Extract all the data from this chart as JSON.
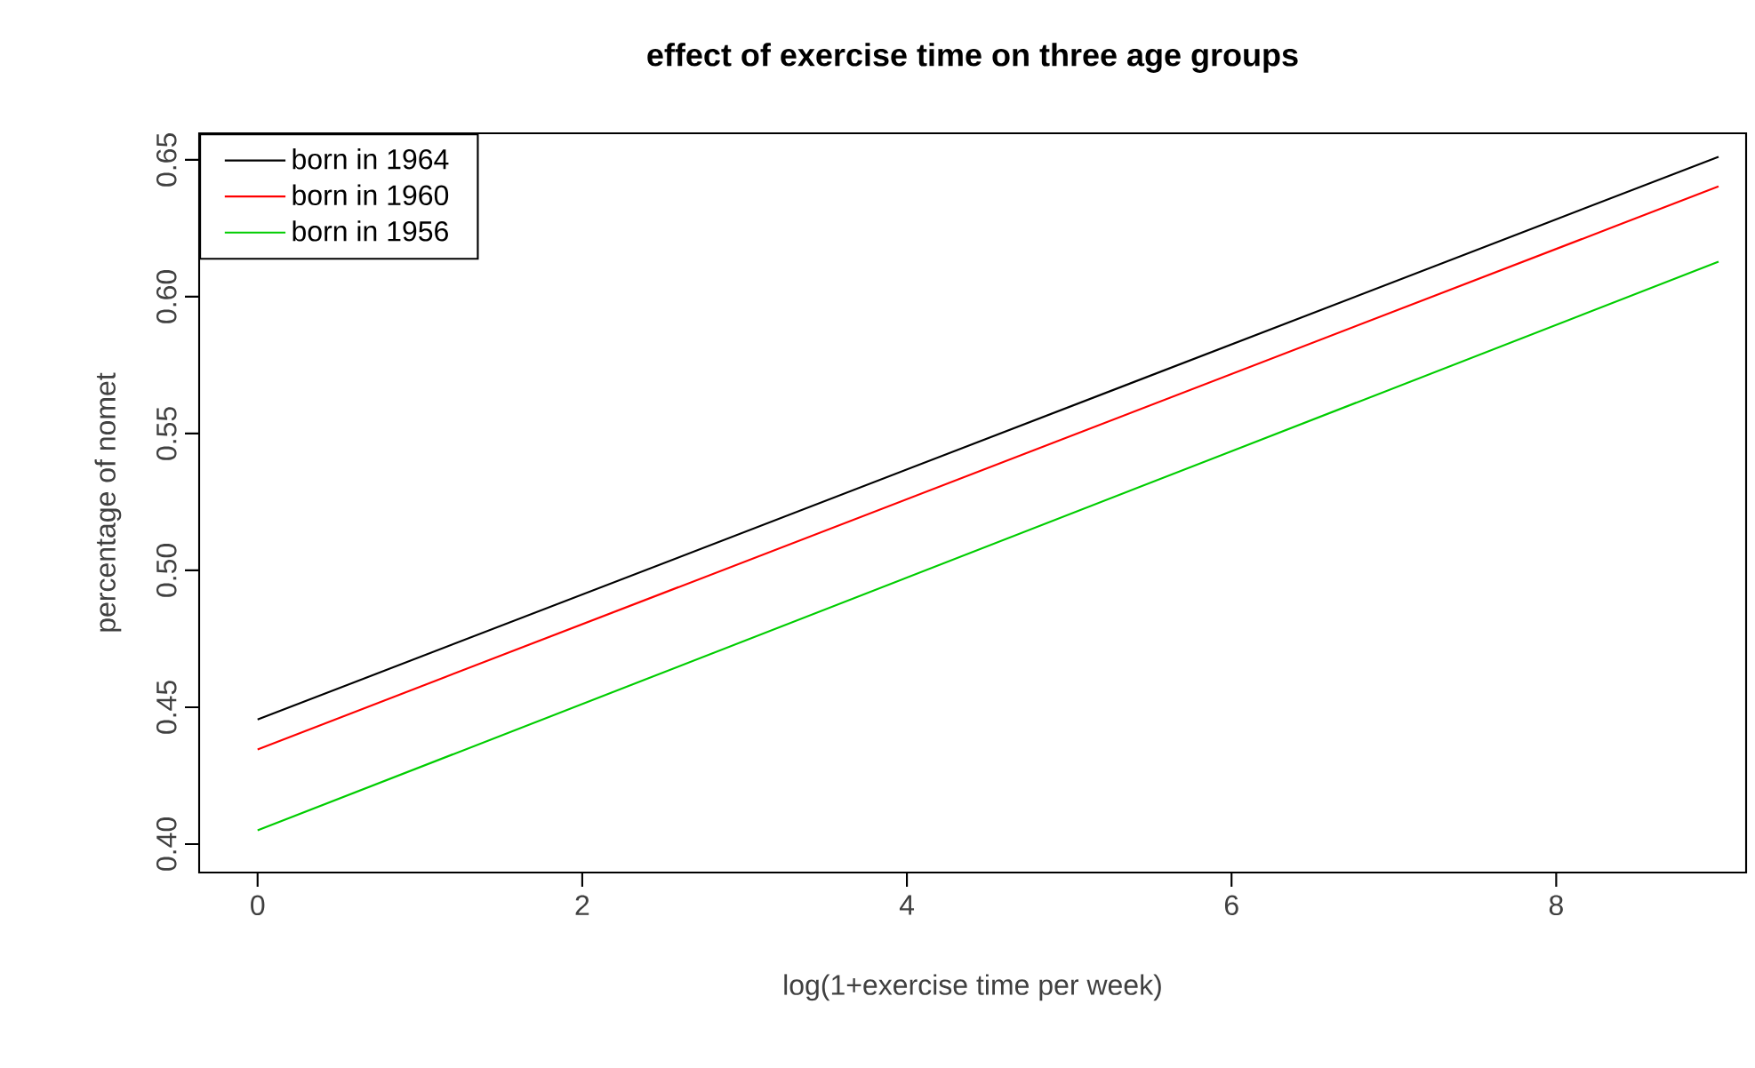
{
  "chart_data": {
    "type": "line",
    "title": "effect of exercise time on three age groups",
    "xlabel": "log(1+exercise time per week)",
    "ylabel": "percentage of nomet",
    "x": [
      0,
      9
    ],
    "series": [
      {
        "name": "born in 1964",
        "color": "#000000",
        "values": [
          0.4455,
          0.6511
        ]
      },
      {
        "name": "born in 1960",
        "color": "#ff0000",
        "values": [
          0.4346,
          0.6403
        ]
      },
      {
        "name": "born in 1956",
        "color": "#00cd00",
        "values": [
          0.405,
          0.6128
        ]
      }
    ],
    "xlim": [
      -0.36,
      9.17
    ],
    "ylim": [
      0.3896,
      0.6597
    ],
    "xticks": [
      0,
      2,
      4,
      6,
      8
    ],
    "yticks": [
      {
        "value": 0.4,
        "label": "0.40"
      },
      {
        "value": 0.45,
        "label": "0.45"
      },
      {
        "value": 0.5,
        "label": "0.50"
      },
      {
        "value": 0.55,
        "label": "0.55"
      },
      {
        "value": 0.6,
        "label": "0.60"
      },
      {
        "value": 0.65,
        "label": "0.65"
      }
    ],
    "grid": false,
    "legend": "top left",
    "marker": "none",
    "line_style": "solid"
  }
}
